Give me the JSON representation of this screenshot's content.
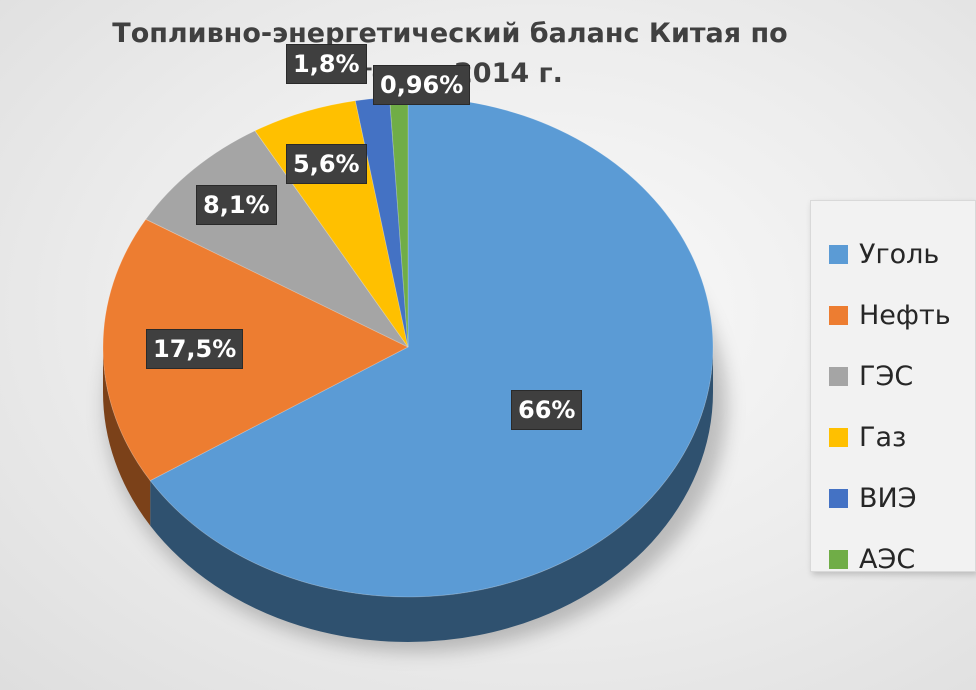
{
  "chart_data": {
    "type": "pie",
    "title_lines": [
      "Топливно-энергетический баланс Китая по",
      "итогам 2014 г."
    ],
    "categories": [
      "Уголь",
      "Нефть",
      "ГЭС",
      "Газ",
      "ВИЭ",
      "АЭС"
    ],
    "values": [
      66,
      17.5,
      8.1,
      5.6,
      1.8,
      0.96
    ],
    "data_labels": [
      "66%",
      "17,5%",
      "8,1%",
      "5,6%",
      "1,8%",
      "0,96%"
    ],
    "colors": [
      "#5b9bd5",
      "#ed7d31",
      "#a5a5a5",
      "#ffc000",
      "#4472c4",
      "#70ad47"
    ],
    "legend_position": "right",
    "style": "3d-pie"
  }
}
